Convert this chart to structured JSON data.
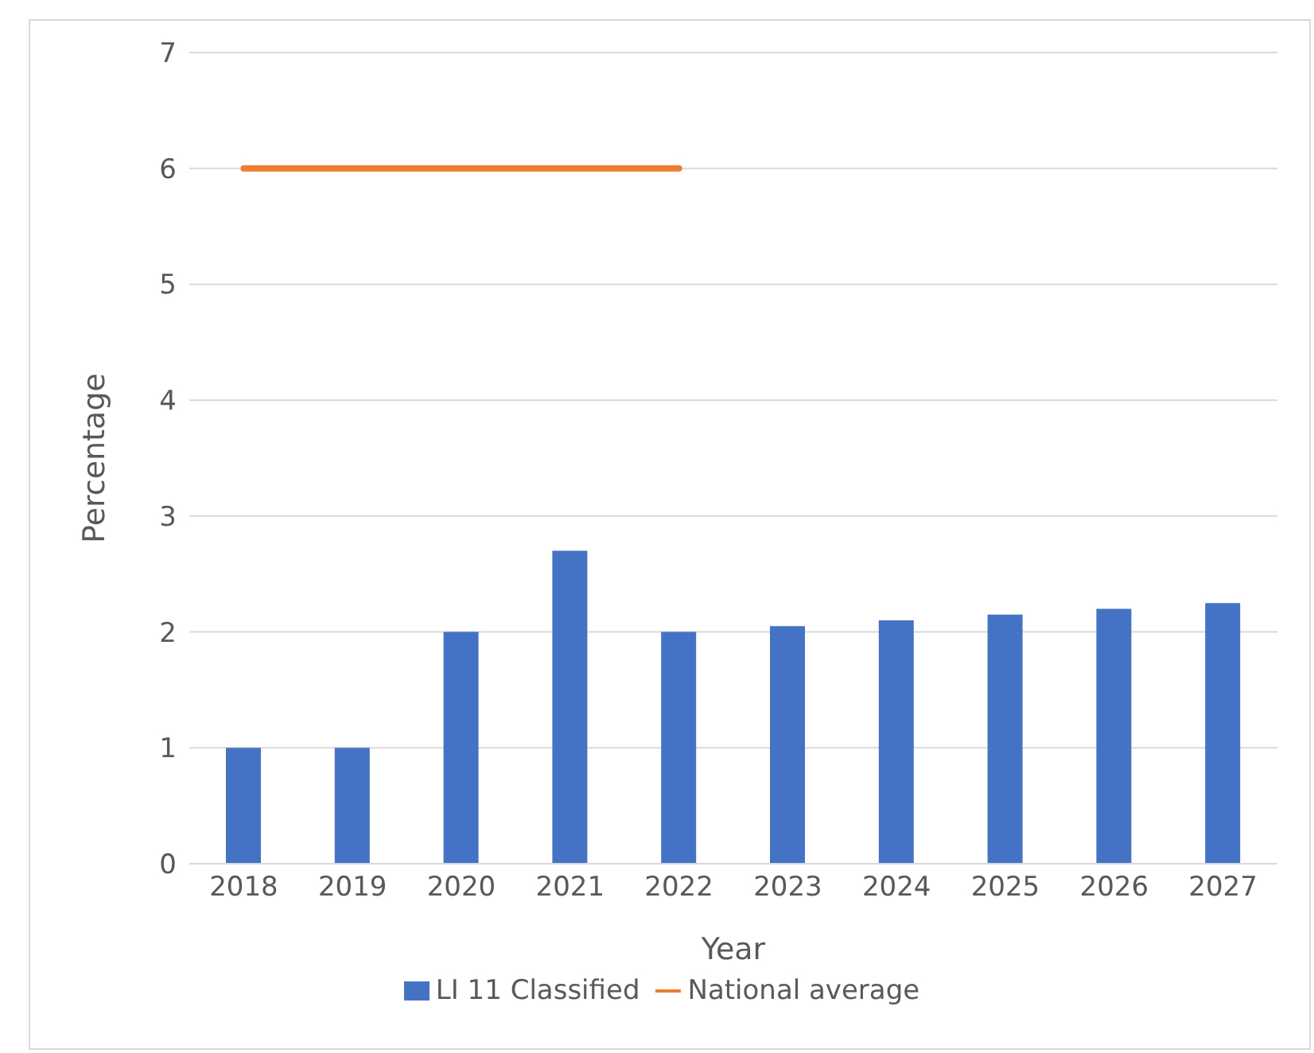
{
  "chart_data": {
    "type": "bar",
    "xlabel": "Year",
    "ylabel": "Percentage",
    "categories": [
      "2018",
      "2019",
      "2020",
      "2021",
      "2022",
      "2023",
      "2024",
      "2025",
      "2026",
      "2027"
    ],
    "series": [
      {
        "name": "LI 11 Classified",
        "color": "#4472c4",
        "values": [
          1,
          1,
          2,
          2.7,
          2,
          2.05,
          2.1,
          2.15,
          2.2,
          2.25
        ]
      },
      {
        "name": "National average",
        "type": "line",
        "color": "#ed7d31",
        "values": [
          6,
          6,
          6,
          6,
          6,
          null,
          null,
          null,
          null,
          null
        ]
      }
    ],
    "ylim": [
      0,
      7
    ],
    "yticks": [
      0,
      1,
      2,
      3,
      4,
      5,
      6,
      7
    ],
    "grid": "y",
    "legend": "bottom",
    "marker": "none",
    "line_style": "solid"
  }
}
